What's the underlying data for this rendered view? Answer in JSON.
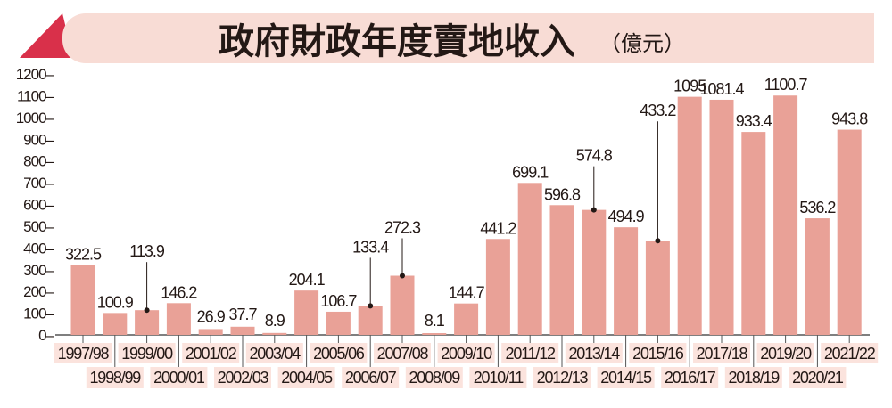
{
  "chart_data": {
    "type": "bar",
    "title": "政府財政年度賣地收入",
    "unit": "（億元）",
    "categories": [
      "1997/98",
      "1998/99",
      "1999/00",
      "2000/01",
      "2001/02",
      "2002/03",
      "2003/04",
      "2004/05",
      "2005/06",
      "2006/07",
      "2007/08",
      "2008/09",
      "2009/10",
      "2010/11",
      "2011/12",
      "2012/13",
      "2013/14",
      "2014/15",
      "2015/16",
      "2016/17",
      "2017/18",
      "2018/19",
      "2019/20",
      "2020/21",
      "2021/22"
    ],
    "values": [
      322.5,
      100.9,
      113.9,
      146.2,
      26.9,
      37.7,
      8.9,
      204.1,
      106.7,
      133.4,
      272.3,
      8.1,
      144.7,
      441.2,
      699.1,
      596.8,
      574.8,
      494.9,
      433.2,
      1095,
      1081.4,
      933.4,
      1100.7,
      536.2,
      943.8
    ],
    "data_labels": [
      "322.5",
      "100.9",
      "113.9",
      "146.2",
      "26.9",
      "37.7",
      "8.9",
      "204.1",
      "106.7",
      "133.4",
      "272.3",
      "8.1",
      "144.7",
      "441.2",
      "699.1",
      "596.8",
      "574.8",
      "494.9",
      "433.2",
      "1095",
      "1081.4",
      "933.4",
      "1100.7",
      "536.2",
      "943.8"
    ],
    "callout_categories": [
      "1999/00",
      "2006/07",
      "2007/08",
      "2013/14",
      "2015/16"
    ],
    "yticks": [
      0,
      100,
      200,
      300,
      400,
      500,
      600,
      700,
      800,
      900,
      1000,
      1100,
      1200
    ],
    "ylim": [
      0,
      1200
    ],
    "grid": false,
    "colors": {
      "bar": "#e9a197",
      "banner": "#f8dcd5",
      "banner_ribbon": "#d9304a",
      "label_bg": "#fbe3dd",
      "text": "#231815"
    }
  }
}
